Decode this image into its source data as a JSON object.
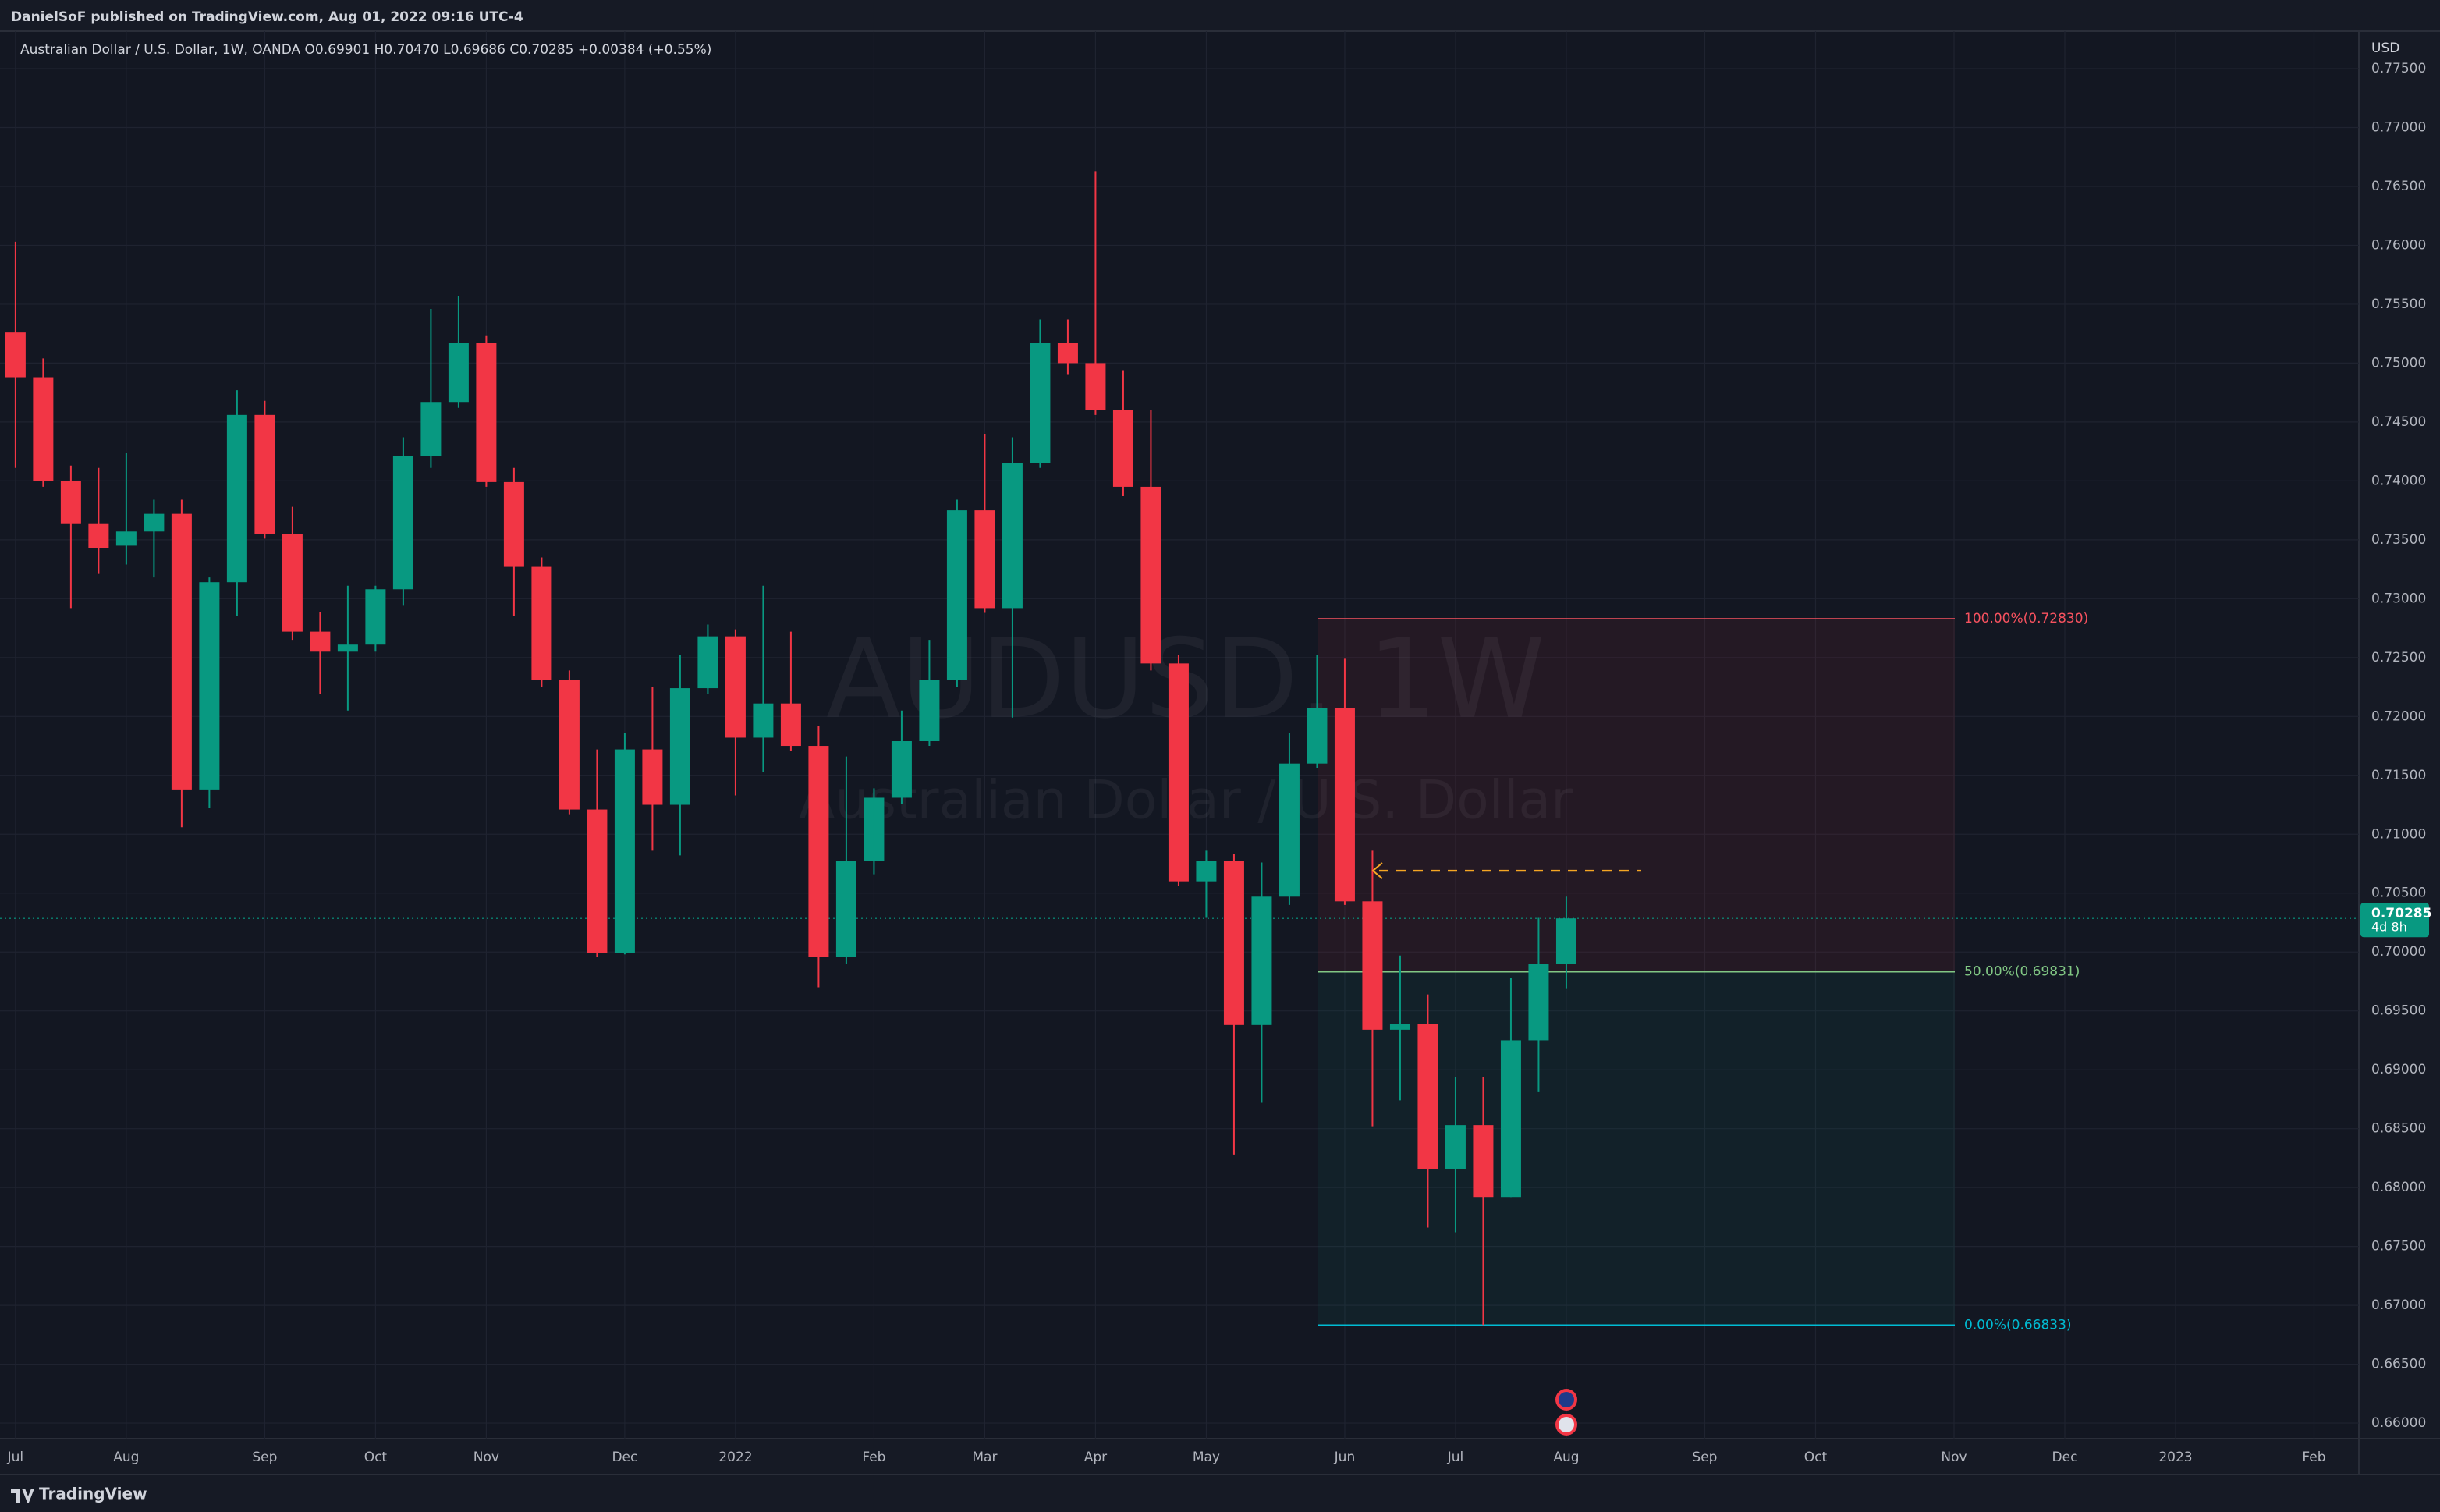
{
  "header": {
    "publisher": "DanielSoF published on TradingView.com, Aug 01, 2022 09:16 UTC-4",
    "brand": "TradingView"
  },
  "chart_data": {
    "type": "candlestick",
    "legend_title": "Australian Dollar / U.S. Dollar, 1W, OANDA",
    "legend_ohlc": [
      "O0.69901",
      "H0.70470",
      "L0.69686",
      "C0.70285",
      "+0.00384 (+0.55%)"
    ],
    "watermark": "AUDUSD, 1W",
    "watermark_subtitle": "Australian Dollar / U.S. Dollar",
    "currency": "USD",
    "up_color": "#089981",
    "down_color": "#f23645",
    "grid": true,
    "open": [
      0.7526,
      0.7488,
      0.74,
      0.7364,
      0.7345,
      0.7357,
      0.7372,
      0.7138,
      0.7314,
      0.7456,
      0.7355,
      0.7272,
      0.7255,
      0.7261,
      0.7308,
      0.7421,
      0.7467,
      0.7517,
      0.7399,
      0.7327,
      0.7231,
      0.7121,
      0.6999,
      0.7172,
      0.7125,
      0.7224,
      0.7268,
      0.7182,
      0.7211,
      0.7175,
      0.6996,
      0.7077,
      0.7131,
      0.7179,
      0.7231,
      0.7375,
      0.7292,
      0.7415,
      0.7517,
      0.75,
      0.746,
      0.7395,
      0.7245,
      0.706,
      0.7077,
      0.6938,
      0.7047,
      0.716,
      0.7207,
      0.7043,
      0.6934,
      0.6939,
      0.6816,
      0.6853,
      0.6792,
      0.6925,
      0.69901
    ],
    "high": [
      0.7603,
      0.7504,
      0.7413,
      0.7411,
      0.7424,
      0.7384,
      0.7384,
      0.7318,
      0.7477,
      0.7468,
      0.7378,
      0.7289,
      0.7311,
      0.7311,
      0.7437,
      0.7546,
      0.7557,
      0.7523,
      0.7411,
      0.7335,
      0.7239,
      0.7172,
      0.7186,
      0.7225,
      0.7252,
      0.7278,
      0.7274,
      0.7311,
      0.7272,
      0.7192,
      0.7166,
      0.7139,
      0.7205,
      0.7265,
      0.7384,
      0.744,
      0.7437,
      0.7537,
      0.7537,
      0.7663,
      0.7494,
      0.746,
      0.7252,
      0.7086,
      0.7083,
      0.7076,
      0.7186,
      0.7252,
      0.7249,
      0.7086,
      0.6997,
      0.6964,
      0.6894,
      0.6894,
      0.6978,
      0.7029,
      0.7047
    ],
    "low": [
      0.7411,
      0.7395,
      0.7292,
      0.7321,
      0.7329,
      0.7318,
      0.7106,
      0.7122,
      0.7285,
      0.7351,
      0.7265,
      0.7219,
      0.7205,
      0.7255,
      0.7294,
      0.7411,
      0.7462,
      0.7395,
      0.7285,
      0.7225,
      0.7117,
      0.6996,
      0.6998,
      0.7086,
      0.7082,
      0.7219,
      0.7133,
      0.7153,
      0.7171,
      0.697,
      0.699,
      0.7066,
      0.7126,
      0.7175,
      0.7225,
      0.7288,
      0.7199,
      0.7411,
      0.749,
      0.7456,
      0.7387,
      0.7239,
      0.7056,
      0.7029,
      0.6828,
      0.6872,
      0.704,
      0.7156,
      0.704,
      0.6852,
      0.6874,
      0.6766,
      0.6762,
      0.66833,
      0.6792,
      0.6881,
      0.69686
    ],
    "close": [
      0.7488,
      0.74,
      0.7364,
      0.7343,
      0.7357,
      0.7372,
      0.7138,
      0.7314,
      0.7456,
      0.7355,
      0.7272,
      0.7255,
      0.7261,
      0.7308,
      0.7421,
      0.7467,
      0.7517,
      0.7399,
      0.7327,
      0.7231,
      0.7121,
      0.6999,
      0.7172,
      0.7125,
      0.7224,
      0.7268,
      0.7182,
      0.7211,
      0.7175,
      0.6996,
      0.7077,
      0.7131,
      0.7179,
      0.7231,
      0.7375,
      0.7292,
      0.7415,
      0.7517,
      0.75,
      0.746,
      0.7395,
      0.7245,
      0.706,
      0.7077,
      0.6938,
      0.7047,
      0.716,
      0.7207,
      0.7043,
      0.6934,
      0.6939,
      0.6816,
      0.6853,
      0.6792,
      0.6925,
      0.699,
      0.70285
    ],
    "xlim": [
      -0.56,
      84.62
    ],
    "xticks": [
      {
        "value": 0,
        "label": "Jul"
      },
      {
        "value": 4,
        "label": "Aug"
      },
      {
        "value": 9,
        "label": "Sep"
      },
      {
        "value": 13,
        "label": "Oct"
      },
      {
        "value": 17,
        "label": "Nov"
      },
      {
        "value": 22,
        "label": "Dec"
      },
      {
        "value": 26,
        "label": "2022"
      },
      {
        "value": 31,
        "label": "Feb"
      },
      {
        "value": 35,
        "label": "Mar"
      },
      {
        "value": 39,
        "label": "Apr"
      },
      {
        "value": 43,
        "label": "May"
      },
      {
        "value": 48,
        "label": "Jun"
      },
      {
        "value": 52,
        "label": "Jul"
      },
      {
        "value": 56,
        "label": "Aug"
      },
      {
        "value": 61,
        "label": "Sep"
      },
      {
        "value": 65,
        "label": "Oct"
      },
      {
        "value": 70,
        "label": "Nov"
      },
      {
        "value": 74,
        "label": "Dec"
      },
      {
        "value": 78,
        "label": "2023"
      },
      {
        "value": 83,
        "label": "Feb"
      }
    ],
    "ylim": [
      0.65868,
      0.77818
    ],
    "yticks": [
      {
        "value": 0.66,
        "label": "0.66000"
      },
      {
        "value": 0.665,
        "label": "0.66500"
      },
      {
        "value": 0.67,
        "label": "0.67000"
      },
      {
        "value": 0.675,
        "label": "0.67500"
      },
      {
        "value": 0.68,
        "label": "0.68000"
      },
      {
        "value": 0.685,
        "label": "0.68500"
      },
      {
        "value": 0.69,
        "label": "0.69000"
      },
      {
        "value": 0.695,
        "label": "0.69500"
      },
      {
        "value": 0.7,
        "label": "0.70000"
      },
      {
        "value": 0.705,
        "label": "0.70500"
      },
      {
        "value": 0.71,
        "label": "0.71000"
      },
      {
        "value": 0.715,
        "label": "0.71500"
      },
      {
        "value": 0.72,
        "label": "0.72000"
      },
      {
        "value": 0.725,
        "label": "0.72500"
      },
      {
        "value": 0.73,
        "label": "0.73000"
      },
      {
        "value": 0.735,
        "label": "0.73500"
      },
      {
        "value": 0.74,
        "label": "0.74000"
      },
      {
        "value": 0.745,
        "label": "0.74500"
      },
      {
        "value": 0.75,
        "label": "0.75000"
      },
      {
        "value": 0.755,
        "label": "0.75500"
      },
      {
        "value": 0.76,
        "label": "0.76000"
      },
      {
        "value": 0.765,
        "label": "0.76500"
      },
      {
        "value": 0.77,
        "label": "0.77000"
      },
      {
        "value": 0.775,
        "label": "0.77500"
      }
    ],
    "last_price": {
      "value": 0.70285,
      "label": "0.70285"
    },
    "countdown": "4d 8h",
    "fib_levels": [
      {
        "value": 0.7283,
        "label": "100.00%(0.72830)",
        "color": "#f7525f"
      },
      {
        "value": 0.69831,
        "label": "50.00%(0.69831)",
        "color": "#81c784"
      },
      {
        "value": 0.66833,
        "label": "0.00%(0.66833)",
        "color": "#00bcd4"
      }
    ],
    "alert_line": 0.7069
  }
}
